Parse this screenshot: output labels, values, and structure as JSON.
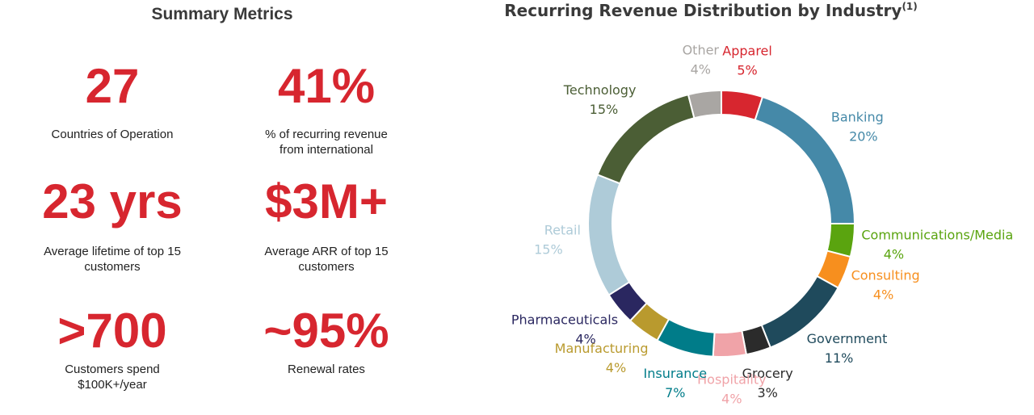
{
  "summary": {
    "title": "Summary Metrics",
    "metrics": [
      {
        "value": "27",
        "label": "Countries of Operation"
      },
      {
        "value": "41%",
        "label": "% of recurring revenue from international"
      },
      {
        "value": "23 yrs",
        "label": "Average lifetime of top 15 customers"
      },
      {
        "value": "$3M+",
        "label": "Average ARR of top 15 customers"
      },
      {
        "value": ">700",
        "label": "Customers spend $100K+/year"
      },
      {
        "value": "~95%",
        "label": "Renewal rates"
      }
    ]
  },
  "chart_data": {
    "type": "donut",
    "title": "Recurring Revenue Distribution by Industry",
    "title_note": "(1)",
    "categories": [
      "Apparel",
      "Banking",
      "Communications/Media",
      "Consulting",
      "Government",
      "Grocery",
      "Hospitality",
      "Insurance",
      "Manufacturing",
      "Pharmaceuticals",
      "Retail",
      "Technology",
      "Other"
    ],
    "values": [
      5,
      20,
      4,
      4,
      11,
      3,
      4,
      7,
      4,
      4,
      15,
      15,
      4
    ],
    "value_labels": [
      "5%",
      "20%",
      "4%",
      "4%",
      "11%",
      "3%",
      "4%",
      "7%",
      "4%",
      "4%",
      "15%",
      "15%",
      "4%"
    ],
    "colors": [
      "#d7262f",
      "#4589a8",
      "#5aa40f",
      "#f78f1e",
      "#1f4a5c",
      "#2b2b2b",
      "#f0a3a8",
      "#007c89",
      "#b99a2e",
      "#2a2760",
      "#aecbd8",
      "#4b5e35",
      "#a9a6a3"
    ]
  }
}
